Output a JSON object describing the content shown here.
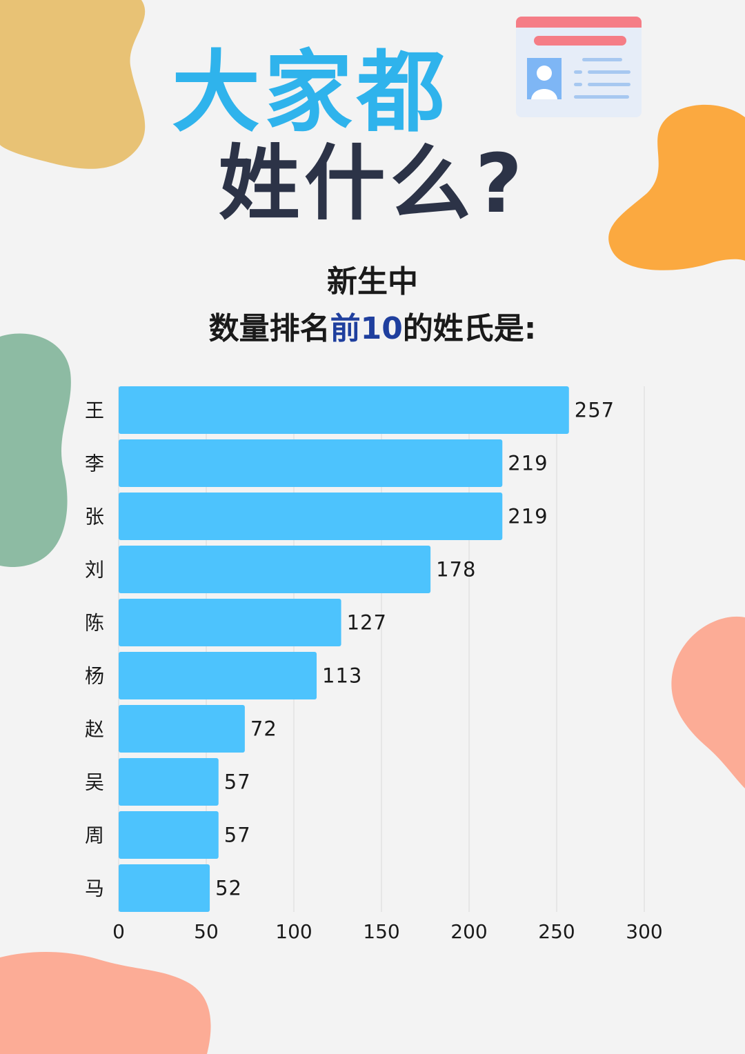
{
  "header": {
    "title_line1": "大家都",
    "title_line2": "姓什么?",
    "subtitle_line1": "新生中",
    "subtitle_line2_before": "数量排名",
    "subtitle_line2_highlight": "前10",
    "subtitle_line2_after": "的姓氏是:"
  },
  "colors": {
    "bar": "#4dc3fd",
    "title_accent": "#2fb3ec",
    "title_dark": "#2c3347",
    "highlight": "#1f3f9e"
  },
  "icons": {
    "id_card": "id-card-icon"
  },
  "chart_data": {
    "type": "bar",
    "orientation": "horizontal",
    "categories": [
      "王",
      "李",
      "张",
      "刘",
      "陈",
      "杨",
      "赵",
      "吴",
      "周",
      "马"
    ],
    "values": [
      257,
      219,
      219,
      178,
      127,
      113,
      72,
      57,
      57,
      52
    ],
    "xlim": [
      0,
      300
    ],
    "xticks": [
      0,
      50,
      100,
      150,
      200,
      250,
      300
    ],
    "grid": true,
    "legend": "none"
  }
}
